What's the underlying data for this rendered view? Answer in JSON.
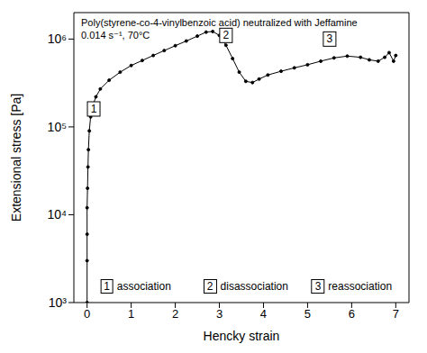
{
  "chart_data": {
    "type": "line",
    "title": "Poly(styrene-co-4-vinylbenzoic acid) neutralized with Jeffamine",
    "subtitle": "0.014 s⁻¹, 70°C",
    "x_label": "Hencky strain",
    "y_label": "Extensional stress [Pa]",
    "log": "y",
    "grid": false,
    "marker": "circle",
    "color": "#000000",
    "x": [
      0,
      0,
      0,
      0,
      0.01,
      0.02,
      0.03,
      0.05,
      0.08,
      0.12,
      0.2,
      0.3,
      0.5,
      0.75,
      1,
      1.25,
      1.5,
      1.75,
      2,
      2.25,
      2.5,
      2.7,
      2.85,
      3,
      3.15,
      3.3,
      3.45,
      3.6,
      3.75,
      3.9,
      4.1,
      4.4,
      4.7,
      5,
      5.3,
      5.6,
      5.9,
      6.2,
      6.4,
      6.6,
      6.75,
      6.85,
      6.95,
      7.0
    ],
    "values": [
      1000,
      3000,
      6000,
      12000,
      20000,
      35000,
      55000,
      90000,
      130000,
      170000,
      220000,
      270000,
      340000,
      420000,
      500000,
      570000,
      650000,
      740000,
      840000,
      950000,
      1080000,
      1200000,
      1220000,
      1100000,
      850000,
      600000,
      420000,
      330000,
      320000,
      350000,
      390000,
      430000,
      470000,
      510000,
      560000,
      610000,
      640000,
      620000,
      580000,
      560000,
      620000,
      700000,
      560000,
      650000
    ],
    "xlim": [
      -0.3,
      7.3
    ],
    "xticks": [
      0,
      1,
      2,
      3,
      4,
      5,
      6,
      7
    ],
    "ylim": [
      1000,
      2000000
    ],
    "yticks": [
      {
        "value": 1000,
        "label": "10³"
      },
      {
        "value": 10000,
        "label": "10⁴"
      },
      {
        "value": 100000,
        "label": "10⁵"
      },
      {
        "value": 1000000,
        "label": "10⁶"
      }
    ],
    "annotations": [
      {
        "text": "1",
        "x": 0.15,
        "y": 160000
      },
      {
        "text": "2",
        "x": 3.15,
        "y": 1100000
      },
      {
        "text": "3",
        "x": 5.5,
        "y": 1000000
      }
    ],
    "stages": [
      {
        "number": "1",
        "label": "association",
        "x": 1.1
      },
      {
        "number": "2",
        "label": "disassociation",
        "x": 3.6
      },
      {
        "number": "3",
        "label": "reassociation",
        "x": 6.0
      }
    ]
  }
}
